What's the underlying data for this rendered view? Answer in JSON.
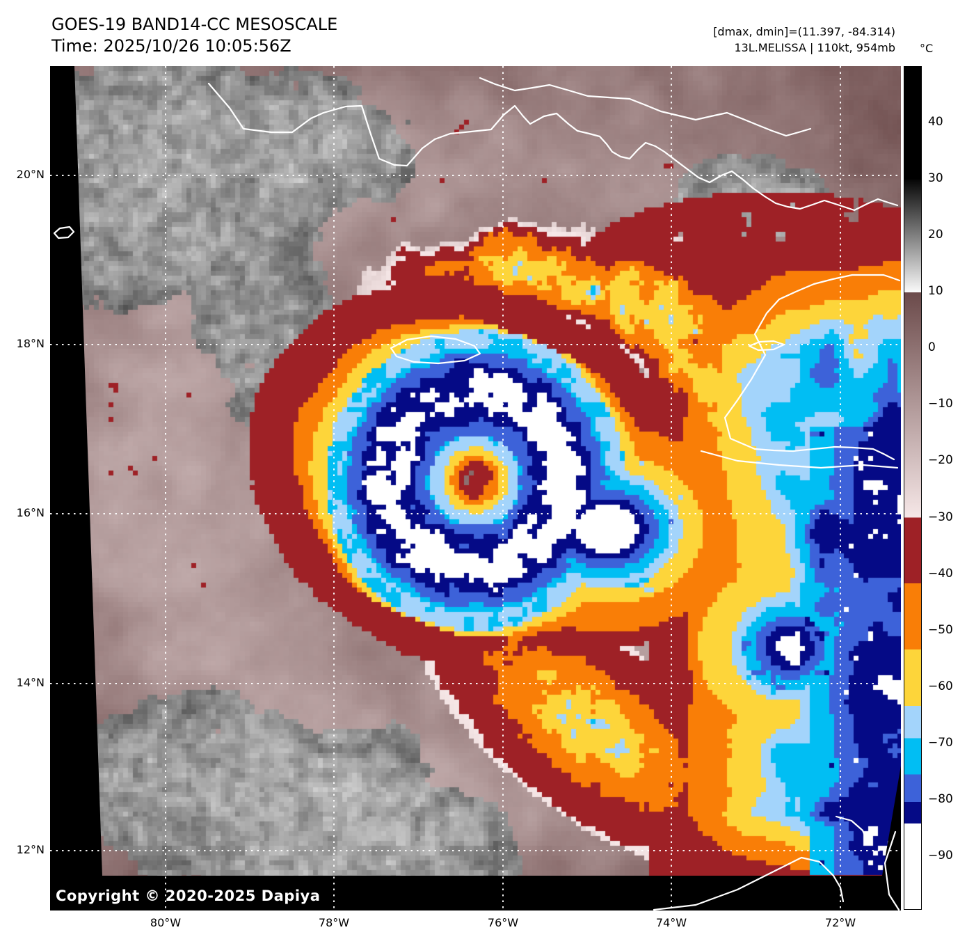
{
  "header": {
    "title_line1": "GOES-19 BAND14-CC MESOSCALE",
    "title_line2": "Time: 2025/10/26 10:05:56Z",
    "dminmax_line": "[dmax, dmin]=(11.397, -84.314)",
    "storm_line": "13L.MELISSA | 110kt, 954mb"
  },
  "map": {
    "copyright": "Copyright © 2020-2025 Dapiya",
    "lat_tick_labels": [
      "20°N",
      "18°N",
      "16°N",
      "14°N",
      "12°N"
    ],
    "lon_tick_labels": [
      "80°W",
      "78°W",
      "76°W",
      "74°W",
      "72°W"
    ]
  },
  "colorbar": {
    "unit_label": "°C",
    "ticks": [
      {
        "label": "40",
        "value": 40
      },
      {
        "label": "30",
        "value": 30
      },
      {
        "label": "20",
        "value": 20
      },
      {
        "label": "10",
        "value": 10
      },
      {
        "label": "0",
        "value": 0
      },
      {
        "label": "−10",
        "value": -10
      },
      {
        "label": "−20",
        "value": -20
      },
      {
        "label": "−30",
        "value": -30
      },
      {
        "label": "−40",
        "value": -40
      },
      {
        "label": "−50",
        "value": -50
      },
      {
        "label": "−60",
        "value": -60
      },
      {
        "label": "−70",
        "value": -70
      },
      {
        "label": "−80",
        "value": -80
      },
      {
        "label": "−90",
        "value": -90
      }
    ],
    "segments": [
      {
        "from": 50,
        "to": 30,
        "solid": true,
        "color": "#000000"
      },
      {
        "from": 30,
        "to": 10,
        "solid": false,
        "color_from": "#060606",
        "color_to": "#fafafa"
      },
      {
        "from": 10,
        "to": -30,
        "solid": false,
        "color_from": "#6b4a4a",
        "color_to": "#f6e7e7"
      },
      {
        "from": -30,
        "to": -41.7,
        "solid": true,
        "color": "#9e2126"
      },
      {
        "from": -41.7,
        "to": -53.4,
        "solid": true,
        "color": "#f97e07"
      },
      {
        "from": -53.4,
        "to": -63.4,
        "solid": true,
        "color": "#fdd53a"
      },
      {
        "from": -63.4,
        "to": -69.2,
        "solid": true,
        "color": "#a3d4fb"
      },
      {
        "from": -69.2,
        "to": -75.6,
        "solid": true,
        "color": "#01bef3"
      },
      {
        "from": -75.6,
        "to": -80.5,
        "solid": true,
        "color": "#3d62d9"
      },
      {
        "from": -80.5,
        "to": -84.3,
        "solid": true,
        "color": "#050a86"
      },
      {
        "from": -84.3,
        "to": -100,
        "solid": true,
        "color": "#ffffff"
      }
    ]
  }
}
